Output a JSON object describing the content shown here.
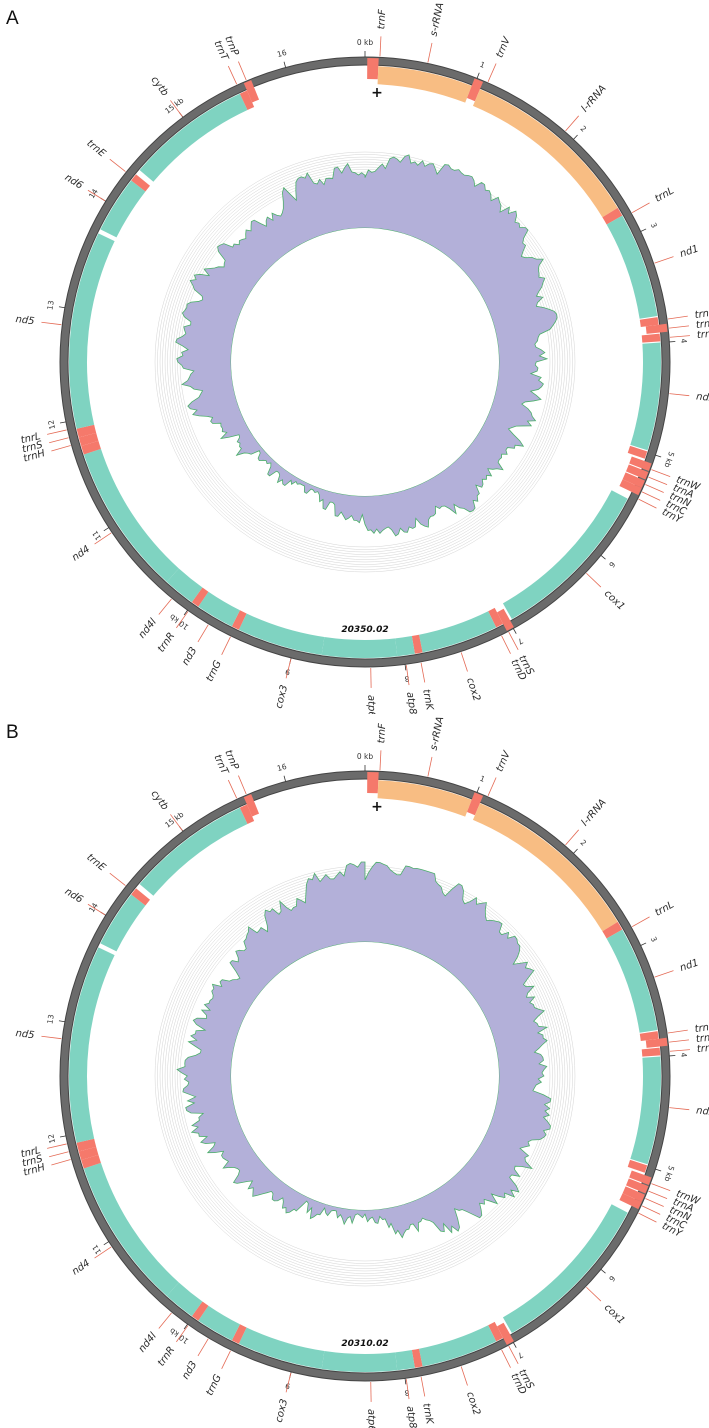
{
  "colors": {
    "backbone": "#6b6b6b",
    "backbone_inner": "#444444",
    "rRNA": "#f8bd83",
    "cds": "#7fd3c1",
    "tRNA": "#f5796b",
    "leader": "#e46a55",
    "coverage_fill": "#b3b0d9",
    "coverage_line": "#4caf6a",
    "grid": "#d4d4d4",
    "label_text": "#2b2b2b"
  },
  "origin_marker": "+",
  "ticks": [
    {
      "pos": 0,
      "label": "0 kb"
    },
    {
      "pos": 1,
      "label": "1"
    },
    {
      "pos": 2,
      "label": "2"
    },
    {
      "pos": 3,
      "label": "3"
    },
    {
      "pos": 4,
      "label": "4"
    },
    {
      "pos": 5,
      "label": "5 kb"
    },
    {
      "pos": 6,
      "label": "6"
    },
    {
      "pos": 7,
      "label": "7"
    },
    {
      "pos": 8,
      "label": "8"
    },
    {
      "pos": 9,
      "label": "9"
    },
    {
      "pos": 10,
      "label": "10 kb"
    },
    {
      "pos": 11,
      "label": "11"
    },
    {
      "pos": 12,
      "label": "12"
    },
    {
      "pos": 13,
      "label": "13"
    },
    {
      "pos": 14,
      "label": "14"
    },
    {
      "pos": 15,
      "label": "15 kb"
    },
    {
      "pos": 16,
      "label": "16"
    }
  ],
  "genome_length_kb": 16.7,
  "features": [
    {
      "name": "trnF",
      "type": "tRNA",
      "start": 0.02,
      "end": 0.12,
      "track": "outer",
      "label_pos": 0.13
    },
    {
      "name": "s-rRNA",
      "type": "rRNA",
      "start": 0.12,
      "end": 0.98,
      "track": "outer",
      "label_pos": 0.55
    },
    {
      "name": "trnV",
      "type": "tRNA",
      "start": 0.98,
      "end": 1.06,
      "track": "outer",
      "label_pos": 1.1
    },
    {
      "name": "l-rRNA",
      "type": "rRNA",
      "start": 1.06,
      "end": 2.72,
      "track": "outer",
      "label_pos": 1.9
    },
    {
      "name": "trnL",
      "type": "tRNA",
      "start": 2.72,
      "end": 2.8,
      "track": "inner",
      "label_pos": 2.82
    },
    {
      "name": "nd1",
      "type": "cds",
      "start": 2.8,
      "end": 3.76,
      "track": "inner",
      "label_pos": 3.3
    },
    {
      "name": "trnI",
      "type": "tRNA",
      "start": 3.77,
      "end": 3.84,
      "track": "inner",
      "label_pos": 3.8
    },
    {
      "name": "trnQ",
      "type": "tRNA",
      "start": 3.84,
      "end": 3.91,
      "track": "outer",
      "label_pos": 3.88
    },
    {
      "name": "trnM",
      "type": "tRNA",
      "start": 3.92,
      "end": 3.99,
      "track": "inner",
      "label_pos": 3.96
    },
    {
      "name": "nd2",
      "type": "cds",
      "start": 4.0,
      "end": 4.98,
      "track": "inner",
      "label_pos": 4.45
    },
    {
      "name": "trnW",
      "type": "tRNA",
      "start": 4.99,
      "end": 5.06,
      "track": "inner",
      "label_pos": 5.13
    },
    {
      "name": "trnA",
      "type": "tRNA",
      "start": 5.08,
      "end": 5.15,
      "track": "outer",
      "label_pos": 5.2
    },
    {
      "name": "trnN",
      "type": "tRNA",
      "start": 5.16,
      "end": 5.23,
      "track": "outer",
      "label_pos": 5.27
    },
    {
      "name": "trnC",
      "type": "tRNA",
      "start": 5.24,
      "end": 5.31,
      "track": "outer",
      "label_pos": 5.34
    },
    {
      "name": "trnY",
      "type": "tRNA",
      "start": 5.31,
      "end": 5.38,
      "track": "outer",
      "label_pos": 5.41
    },
    {
      "name": "cox1",
      "type": "cds",
      "start": 5.45,
      "end": 6.97,
      "track": "inner",
      "label_pos": 6.2
    },
    {
      "name": "trnS",
      "type": "tRNA",
      "start": 6.99,
      "end": 7.06,
      "track": "outer",
      "label_pos": 7.05
    },
    {
      "name": "trnD",
      "type": "tRNA",
      "start": 7.06,
      "end": 7.13,
      "track": "inner",
      "label_pos": 7.12
    },
    {
      "name": "cox2",
      "type": "cds",
      "start": 7.13,
      "end": 7.83,
      "track": "inner",
      "label_pos": 7.5
    },
    {
      "name": "trnK",
      "type": "tRNA",
      "start": 7.83,
      "end": 7.9,
      "track": "inner",
      "label_pos": 7.86
    },
    {
      "name": "atp8",
      "type": "cds",
      "start": 7.9,
      "end": 8.06,
      "track": "inner",
      "label_pos": 7.99
    },
    {
      "name": "atp6",
      "type": "cds",
      "start": 8.06,
      "end": 8.74,
      "track": "inner",
      "label_pos": 8.3
    },
    {
      "name": "cox3",
      "type": "cds",
      "start": 8.74,
      "end": 9.52,
      "track": "inner",
      "label_pos": 9.0
    },
    {
      "name": "trnG",
      "type": "tRNA",
      "start": 9.52,
      "end": 9.59,
      "track": "inner",
      "label_pos": 9.56
    },
    {
      "name": "nd3",
      "type": "cds",
      "start": 9.59,
      "end": 9.94,
      "track": "inner",
      "label_pos": 9.78
    },
    {
      "name": "trnR",
      "type": "tRNA",
      "start": 9.94,
      "end": 10.01,
      "track": "inner",
      "label_pos": 9.99
    },
    {
      "name": "nd4l",
      "type": "cds",
      "start": 10.01,
      "end": 10.3,
      "track": "inner",
      "label_pos": 10.17
    },
    {
      "name": "nd4",
      "type": "cds",
      "start": 10.3,
      "end": 11.68,
      "track": "inner",
      "label_pos": 10.95
    },
    {
      "name": "tnrL",
      "type": "tRNA",
      "start": 11.68,
      "end": 11.76,
      "track": "inner",
      "label_pos": 11.93
    },
    {
      "name": "trnS",
      "type": "tRNA",
      "start": 11.76,
      "end": 11.84,
      "track": "inner",
      "label_pos": 11.86
    },
    {
      "name": "trnH",
      "type": "tRNA",
      "start": 11.84,
      "end": 11.92,
      "track": "inner",
      "label_pos": 11.79
    },
    {
      "name": "nd5",
      "type": "cds",
      "start": 11.92,
      "end": 13.72,
      "track": "outer",
      "label_pos": 12.85
    },
    {
      "name": "nd6",
      "type": "cds",
      "start": 13.76,
      "end": 14.28,
      "track": "inner",
      "label_pos": 14.0
    },
    {
      "name": "trnE",
      "type": "tRNA",
      "start": 14.28,
      "end": 14.35,
      "track": "inner",
      "label_pos": 14.31
    },
    {
      "name": "cytb",
      "type": "cds",
      "start": 14.4,
      "end": 15.54,
      "track": "inner",
      "label_pos": 15.0
    },
    {
      "name": "trnT",
      "type": "tRNA",
      "start": 15.54,
      "end": 15.61,
      "track": "inner",
      "label_pos": 15.55
    },
    {
      "name": "trnP",
      "type": "tRNA",
      "start": 15.61,
      "end": 15.68,
      "track": "outer",
      "label_pos": 15.64
    }
  ],
  "panels": [
    {
      "letter": "A",
      "center_label": "20350.02",
      "seed": 7
    },
    {
      "letter": "B",
      "center_label": "20310.02",
      "seed": 19
    }
  ]
}
